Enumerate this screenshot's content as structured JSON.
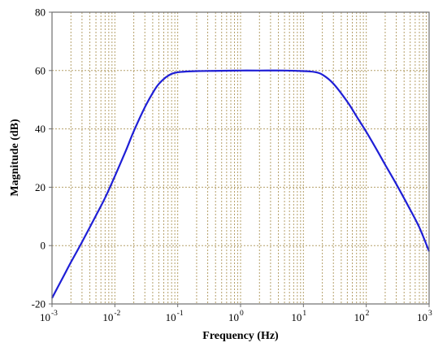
{
  "chart_data": {
    "type": "line",
    "title": "",
    "xlabel": "Frequency (Hz)",
    "ylabel": "Magnitude (dB)",
    "x_scale": "log",
    "xlim": [
      0.001,
      1000
    ],
    "ylim": [
      -20,
      80
    ],
    "x_ticks": [
      {
        "base": "10",
        "exp": "-3"
      },
      {
        "base": "10",
        "exp": "-2"
      },
      {
        "base": "10",
        "exp": "-1"
      },
      {
        "base": "10",
        "exp": "0"
      },
      {
        "base": "10",
        "exp": "1"
      },
      {
        "base": "10",
        "exp": "2"
      },
      {
        "base": "10",
        "exp": "3"
      }
    ],
    "y_ticks": [
      "-20",
      "0",
      "20",
      "40",
      "60",
      "80"
    ],
    "grid": true,
    "legend": "none",
    "series": [
      {
        "color": "#1f1fd6",
        "x": [
          0.001,
          0.0015,
          0.002,
          0.003,
          0.005,
          0.007,
          0.01,
          0.015,
          0.02,
          0.03,
          0.04,
          0.05,
          0.07,
          0.1,
          0.2,
          0.5,
          1,
          2,
          5,
          10,
          15,
          20,
          30,
          50,
          70,
          100,
          150,
          200,
          300,
          500,
          700,
          1000
        ],
        "y": [
          -18,
          -10.8,
          -5.7,
          1.2,
          10.3,
          16.4,
          23.8,
          32.6,
          39.2,
          47.4,
          52.3,
          55.4,
          58.2,
          59.4,
          59.8,
          59.9,
          60.0,
          60.0,
          60.0,
          59.8,
          59.5,
          58.6,
          55.5,
          49.3,
          44.3,
          39.0,
          32.5,
          27.7,
          21.1,
          12.3,
          6.2,
          -2.0
        ]
      }
    ]
  }
}
